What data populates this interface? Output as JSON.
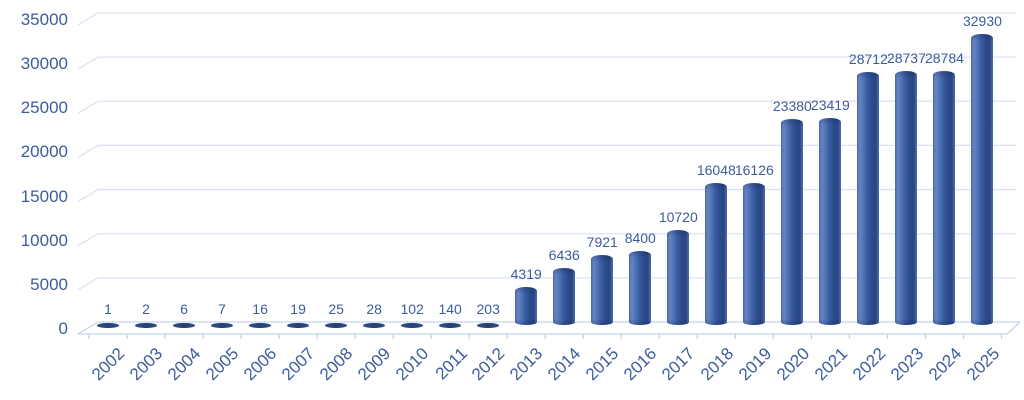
{
  "chart_data": {
    "type": "bar",
    "subtype": "3d-cylinder-column",
    "title": "",
    "xlabel": "",
    "ylabel": "",
    "categories": [
      "2002",
      "2003",
      "2004",
      "2005",
      "2006",
      "2007",
      "2008",
      "2009",
      "2010",
      "2011",
      "2012",
      "2013",
      "2014",
      "2015",
      "2016",
      "2017",
      "2018",
      "2019",
      "2020",
      "2021",
      "2022",
      "2023",
      "2024",
      "2025"
    ],
    "values": [
      1,
      2,
      6,
      7,
      16,
      19,
      25,
      28,
      102,
      140,
      203,
      4319,
      6436,
      7921,
      8400,
      10720,
      16048,
      16126,
      23380,
      23419,
      28712,
      28737,
      28784,
      32930
    ],
    "data_labels": [
      "1",
      "2",
      "6",
      "7",
      "16",
      "19",
      "25",
      "28",
      "102",
      "140",
      "203",
      "4319",
      "6436",
      "7921",
      "8400",
      "10720",
      "16048",
      "16126",
      "23380",
      "23419",
      "28712",
      "28737",
      "28784",
      "32930"
    ],
    "ylim": [
      0,
      35000
    ],
    "ytick_step": 5000,
    "y_ticks": [
      "0",
      "5000",
      "10000",
      "15000",
      "20000",
      "25000",
      "30000",
      "35000"
    ],
    "grid": true,
    "legend": false,
    "colors": {
      "label_text": "#3d5c9c",
      "gridline": "#dbe3f3",
      "axis_line": "#c6d2e9",
      "bar_highlight": "#6584c4",
      "bar_mid": "#3a5ca3",
      "bar_dark": "#294682",
      "background": "#ffffff"
    }
  }
}
